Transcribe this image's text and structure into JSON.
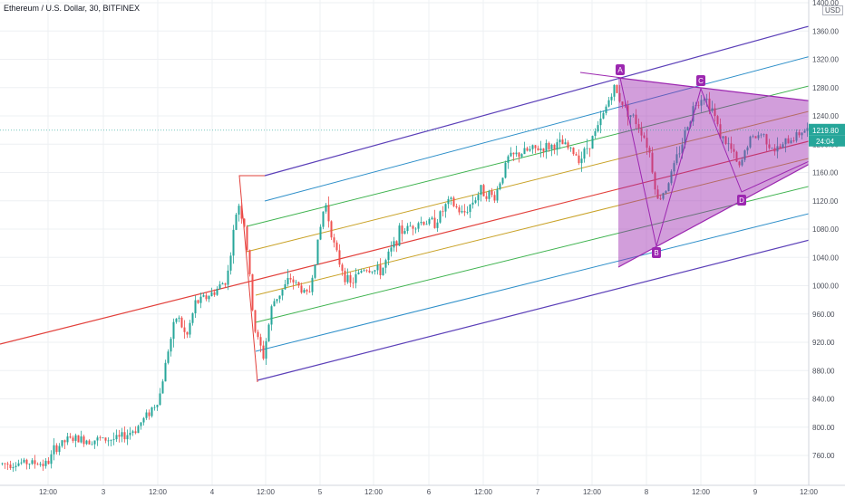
{
  "header": {
    "title": "Ethereum / U.S. Dollar, 30, BITFINEX",
    "currency": "USD"
  },
  "chart_data": {
    "type": "candlestick",
    "symbol": "Ethereum / U.S. Dollar",
    "interval": "30",
    "exchange": "BITFINEX",
    "ylim": [
      720,
      1400
    ],
    "y_ticks": [
      760,
      800,
      840,
      880,
      920,
      960,
      1000,
      1040,
      1080,
      1120,
      1160,
      1200,
      1240,
      1280,
      1320,
      1360,
      1400
    ],
    "y_tick_labels": [
      "760.00",
      "800.00",
      "840.00",
      "880.00",
      "920.00",
      "960.00",
      "1000.00",
      "1040.00",
      "1080.00",
      "1120.00",
      "1160.00",
      "1200.00",
      "1240.00",
      "1280.00",
      "1320.00",
      "1360.00",
      "1400.00"
    ],
    "x_tick_labels": [
      "12:00",
      "3",
      "12:00",
      "4",
      "12:00",
      "5",
      "12:00",
      "6",
      "12:00",
      "7",
      "12:00",
      "8",
      "12:00",
      "9",
      "12:00"
    ],
    "current_price": "1219.80",
    "countdown": "24:04",
    "last_price_value": 1219.8,
    "grid": true,
    "up_color": "#26a69a",
    "down_color": "#ef5350",
    "pattern_labels": [
      "A",
      "B",
      "C",
      "D"
    ],
    "pattern_color": "#9c27b0",
    "fib_channel_colors": [
      "#5b3fb8",
      "#2e8fc9",
      "#3fb34f",
      "#c9a227",
      "#e2403b"
    ]
  }
}
